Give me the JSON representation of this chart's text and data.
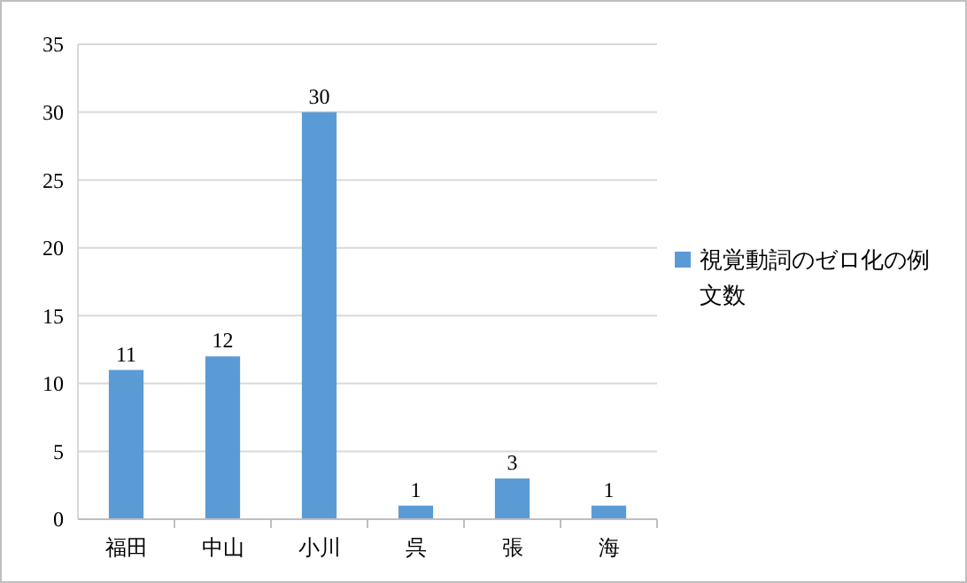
{
  "chart_data": {
    "type": "bar",
    "categories": [
      "福田",
      "中山",
      "小川",
      "呉",
      "張",
      "海"
    ],
    "series": [
      {
        "name": "視覚動詞のゼロ化の例文数",
        "color": "#5b9bd5",
        "values": [
          11,
          12,
          30,
          1,
          3,
          1
        ]
      }
    ],
    "ylim": [
      0,
      35
    ],
    "yticks": [
      0,
      5,
      10,
      15,
      20,
      25,
      30,
      35
    ],
    "grid": "y",
    "legend": "right",
    "data_labels": true
  }
}
